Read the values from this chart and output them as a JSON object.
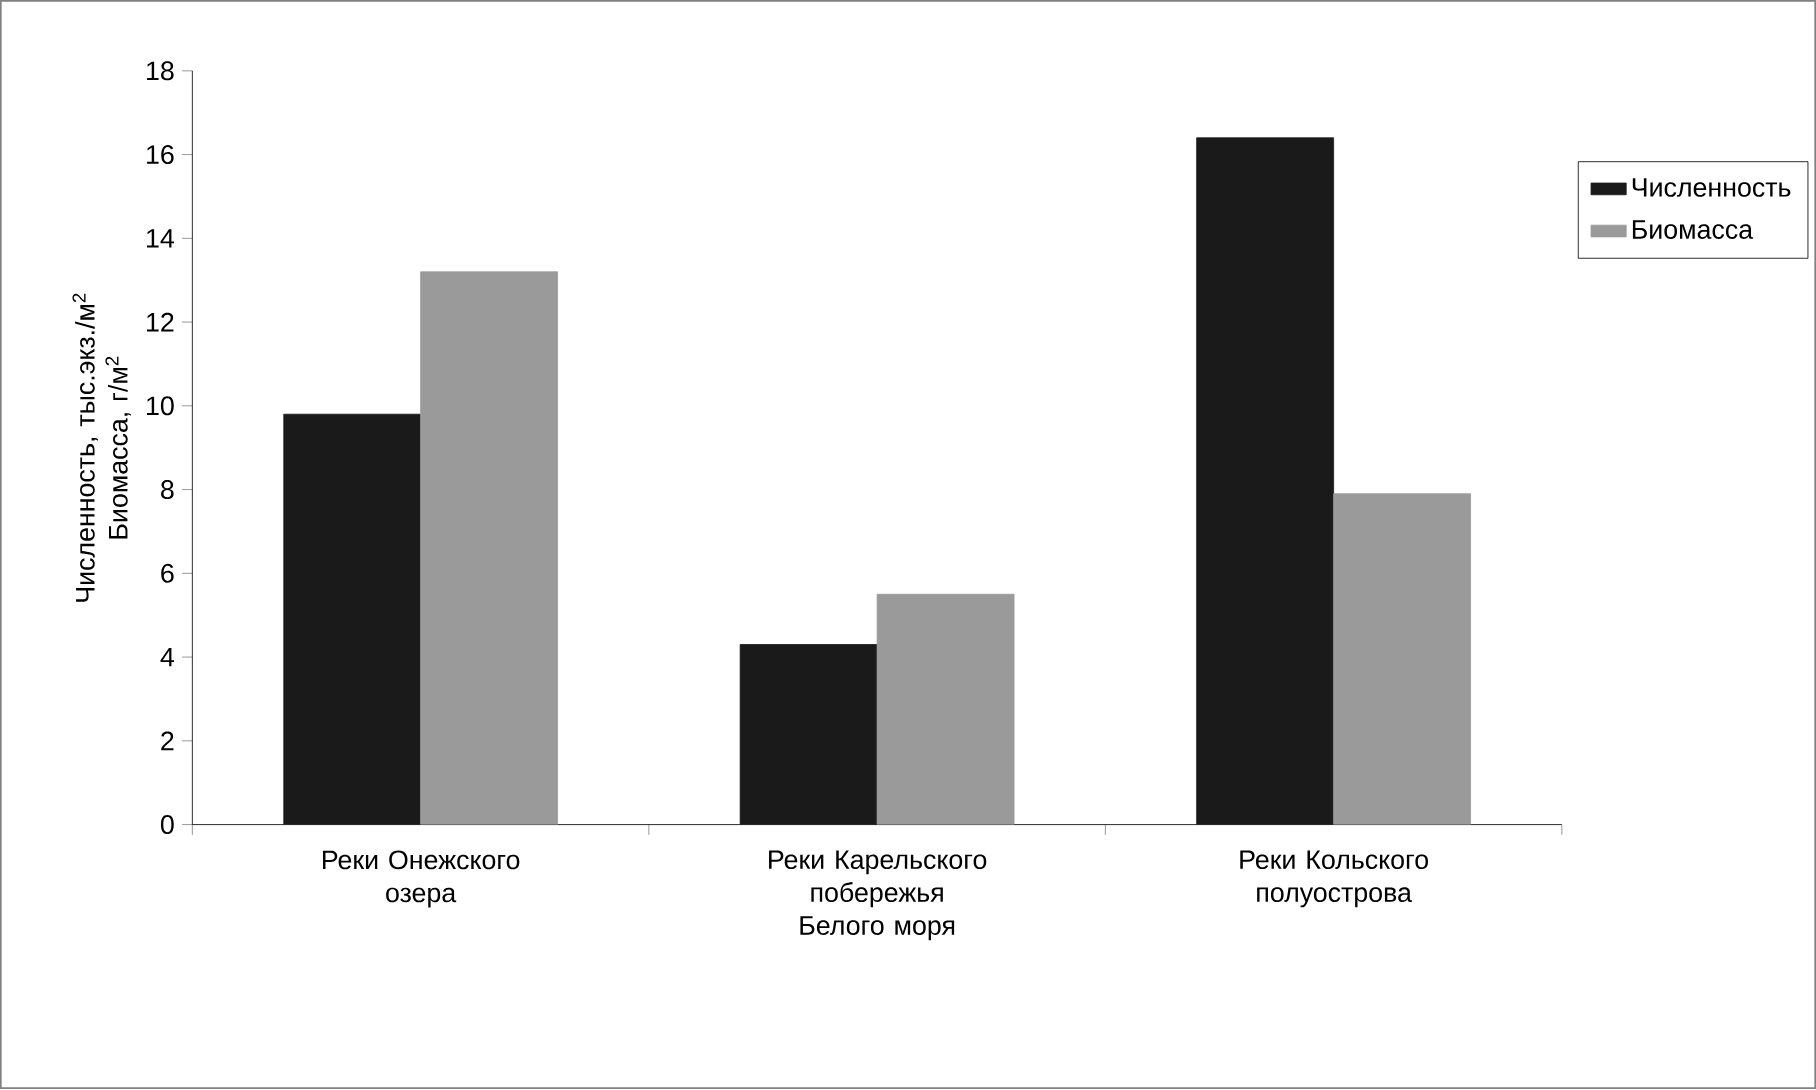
{
  "chart_data": {
    "type": "bar",
    "ylabel": "Численность, тыс.экз./м$^{2}$ Биомасса, г/м$^{2}$",
    "categories": [
      "Реки Онежского озера",
      "Реки Карельского побережья Белого моря",
      "Реки Кольского полуострова"
    ],
    "series": [
      {
        "name": "Численность",
        "color": "#1a1a1a",
        "values": [
          9.8,
          4.3,
          16.4
        ]
      },
      {
        "name": "Биомасса",
        "color": "#9a9a9a",
        "values": [
          13.2,
          5.5,
          7.9
        ]
      }
    ],
    "ylim": [
      0,
      18
    ],
    "yticks": [
      0,
      2,
      4,
      6,
      8,
      10,
      12,
      14,
      16,
      18
    ],
    "legend": "top right"
  }
}
